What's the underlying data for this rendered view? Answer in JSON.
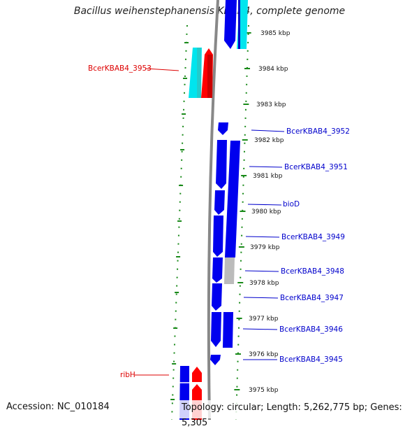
{
  "title": "Bacillus weihenstephanensis KBAB4, complete genome",
  "accession_text": "Accession: NC_010184",
  "topology_text": "Topology: circular; Length: 5,262,775 bp; Genes: 5,305",
  "colors": {
    "forward": "#0000ee",
    "reverse_rna": "#ff0000",
    "rna_cyan": "#00e5ee",
    "pseudo": "#bbbbbb",
    "backbone": "#888888",
    "ticks": "#1a8a1a",
    "label_blue": "#0000cc",
    "label_red": "#dd0000"
  },
  "kbp_labels": [
    "3985 kbp",
    "3984 kbp",
    "3983 kbp",
    "3982 kbp",
    "3981 kbp",
    "3980 kbp",
    "3979 kbp",
    "3978 kbp",
    "3977 kbp",
    "3976 kbp",
    "3975 kbp"
  ],
  "gene_labels": [
    {
      "text": "BcerKBAB4_3953",
      "color": "label_red"
    },
    {
      "text": "BcerKBAB4_3952",
      "color": "label_blue"
    },
    {
      "text": "BcerKBAB4_3951",
      "color": "label_blue"
    },
    {
      "text": "bioD",
      "color": "label_blue"
    },
    {
      "text": "BcerKBAB4_3949",
      "color": "label_blue"
    },
    {
      "text": "BcerKBAB4_3948",
      "color": "label_blue"
    },
    {
      "text": "BcerKBAB4_3947",
      "color": "label_blue"
    },
    {
      "text": "BcerKBAB4_3946",
      "color": "label_blue"
    },
    {
      "text": "BcerKBAB4_3945",
      "color": "label_blue"
    },
    {
      "text": "ribH",
      "color": "label_red"
    }
  ]
}
